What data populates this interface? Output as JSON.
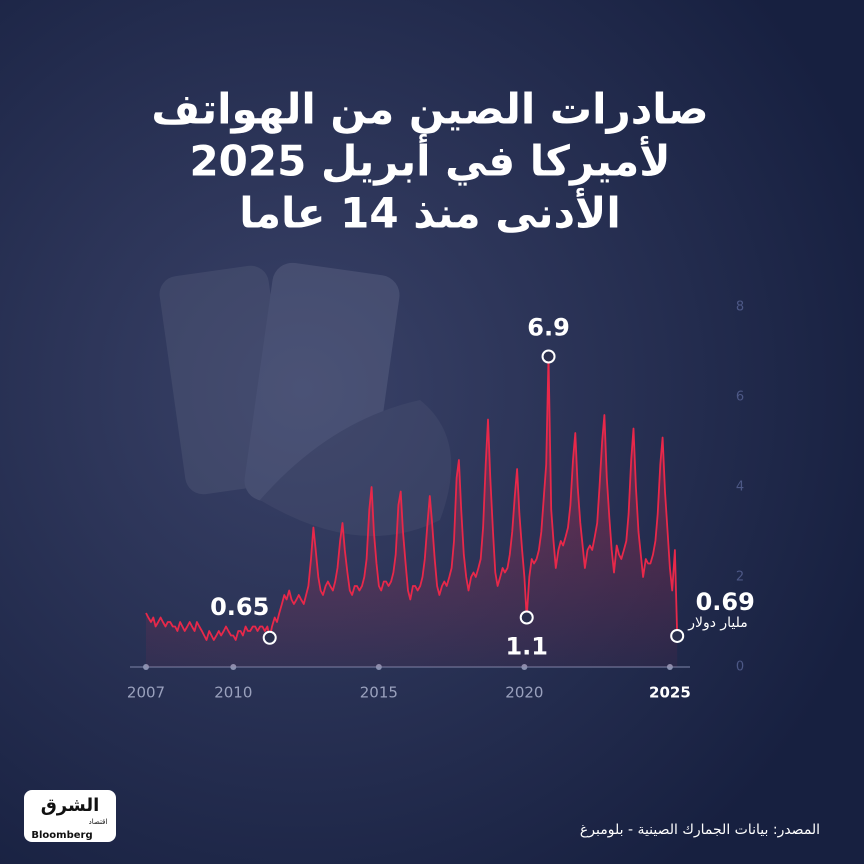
{
  "chart_data": {
    "type": "line",
    "title": [
      "صادرات الصين من الهواتف",
      "لأميركا في أبريل 2025",
      "الأدنى منذ 14 عاما"
    ],
    "y_label": "مليار دولار",
    "source": "المصدر: بيانات الجمارك الصينية - بلومبرغ",
    "color": "#e8284a",
    "x": [
      2007,
      2007.08,
      2007.17,
      2007.25,
      2007.33,
      2007.42,
      2007.5,
      2007.58,
      2007.67,
      2007.75,
      2007.83,
      2007.92,
      2008,
      2008.08,
      2008.17,
      2008.25,
      2008.33,
      2008.42,
      2008.5,
      2008.58,
      2008.67,
      2008.75,
      2008.83,
      2008.92,
      2009,
      2009.08,
      2009.17,
      2009.25,
      2009.33,
      2009.42,
      2009.5,
      2009.58,
      2009.67,
      2009.75,
      2009.83,
      2009.92,
      2010,
      2010.08,
      2010.17,
      2010.25,
      2010.33,
      2010.42,
      2010.5,
      2010.58,
      2010.67,
      2010.75,
      2010.83,
      2010.92,
      2011,
      2011.08,
      2011.17,
      2011.25,
      2011.33,
      2011.42,
      2011.5,
      2011.58,
      2011.67,
      2011.75,
      2011.83,
      2011.92,
      2012,
      2012.08,
      2012.17,
      2012.25,
      2012.33,
      2012.42,
      2012.5,
      2012.58,
      2012.67,
      2012.75,
      2012.83,
      2012.92,
      2013,
      2013.08,
      2013.17,
      2013.25,
      2013.33,
      2013.42,
      2013.5,
      2013.58,
      2013.67,
      2013.75,
      2013.83,
      2013.92,
      2014,
      2014.08,
      2014.17,
      2014.25,
      2014.33,
      2014.42,
      2014.5,
      2014.58,
      2014.67,
      2014.75,
      2014.83,
      2014.92,
      2015,
      2015.08,
      2015.17,
      2015.25,
      2015.33,
      2015.42,
      2015.5,
      2015.58,
      2015.67,
      2015.75,
      2015.83,
      2015.92,
      2016,
      2016.08,
      2016.17,
      2016.25,
      2016.33,
      2016.42,
      2016.5,
      2016.58,
      2016.67,
      2016.75,
      2016.83,
      2016.92,
      2017,
      2017.08,
      2017.17,
      2017.25,
      2017.33,
      2017.42,
      2017.5,
      2017.58,
      2017.67,
      2017.75,
      2017.83,
      2017.92,
      2018,
      2018.08,
      2018.17,
      2018.25,
      2018.33,
      2018.42,
      2018.5,
      2018.58,
      2018.67,
      2018.75,
      2018.83,
      2018.92,
      2019,
      2019.08,
      2019.17,
      2019.25,
      2019.33,
      2019.42,
      2019.5,
      2019.58,
      2019.67,
      2019.75,
      2019.83,
      2019.92,
      2020,
      2020.08,
      2020.17,
      2020.25,
      2020.33,
      2020.42,
      2020.5,
      2020.58,
      2020.67,
      2020.75,
      2020.83,
      2020.92,
      2021,
      2021.08,
      2021.17,
      2021.25,
      2021.33,
      2021.42,
      2021.5,
      2021.58,
      2021.67,
      2021.75,
      2021.83,
      2021.92,
      2022,
      2022.08,
      2022.17,
      2022.25,
      2022.33,
      2022.42,
      2022.5,
      2022.58,
      2022.67,
      2022.75,
      2022.83,
      2022.92,
      2023,
      2023.08,
      2023.17,
      2023.25,
      2023.33,
      2023.42,
      2023.5,
      2023.58,
      2023.67,
      2023.75,
      2023.83,
      2023.92,
      2024,
      2024.08,
      2024.17,
      2024.25,
      2024.33,
      2024.42,
      2024.5,
      2024.58,
      2024.67,
      2024.75,
      2024.83,
      2024.92,
      2025,
      2025.08,
      2025.17,
      2025.25
    ],
    "values": [
      1.2,
      1.1,
      1.0,
      1.1,
      0.9,
      1.0,
      1.1,
      1.0,
      0.9,
      1.0,
      1.0,
      0.9,
      0.9,
      0.8,
      1.0,
      0.9,
      0.8,
      0.9,
      1.0,
      0.9,
      0.8,
      1.0,
      0.9,
      0.8,
      0.7,
      0.6,
      0.8,
      0.7,
      0.6,
      0.7,
      0.8,
      0.7,
      0.8,
      0.9,
      0.8,
      0.7,
      0.7,
      0.6,
      0.8,
      0.8,
      0.7,
      0.9,
      0.8,
      0.8,
      0.9,
      0.9,
      0.8,
      0.9,
      0.9,
      0.8,
      0.9,
      0.65,
      0.9,
      1.1,
      1.0,
      1.2,
      1.4,
      1.6,
      1.5,
      1.7,
      1.5,
      1.4,
      1.5,
      1.6,
      1.5,
      1.4,
      1.6,
      1.8,
      2.4,
      3.1,
      2.6,
      2.0,
      1.7,
      1.6,
      1.8,
      1.9,
      1.8,
      1.7,
      1.9,
      2.2,
      2.8,
      3.2,
      2.6,
      2.1,
      1.7,
      1.6,
      1.8,
      1.8,
      1.7,
      1.8,
      2.0,
      2.4,
      3.5,
      4.0,
      3.0,
      2.3,
      1.8,
      1.7,
      1.9,
      1.9,
      1.8,
      1.9,
      2.1,
      2.5,
      3.6,
      3.9,
      3.0,
      2.3,
      1.7,
      1.5,
      1.8,
      1.8,
      1.7,
      1.8,
      2.0,
      2.4,
      3.2,
      3.8,
      3.2,
      2.4,
      1.8,
      1.6,
      1.8,
      1.9,
      1.8,
      2.0,
      2.2,
      2.8,
      4.2,
      4.6,
      3.5,
      2.5,
      2.0,
      1.7,
      2.0,
      2.1,
      2.0,
      2.2,
      2.4,
      3.1,
      4.5,
      5.5,
      4.2,
      3.0,
      2.1,
      1.8,
      2.0,
      2.2,
      2.1,
      2.2,
      2.5,
      3.0,
      3.8,
      4.4,
      3.4,
      2.6,
      2.0,
      1.1,
      2.0,
      2.4,
      2.3,
      2.4,
      2.6,
      3.0,
      3.8,
      4.5,
      6.9,
      3.5,
      2.8,
      2.2,
      2.6,
      2.8,
      2.7,
      2.9,
      3.1,
      3.6,
      4.6,
      5.2,
      4.0,
      3.2,
      2.7,
      2.2,
      2.6,
      2.7,
      2.6,
      2.9,
      3.2,
      4.0,
      5.0,
      5.6,
      4.2,
      3.3,
      2.6,
      2.1,
      2.7,
      2.5,
      2.4,
      2.6,
      2.8,
      3.4,
      4.6,
      5.3,
      4.0,
      3.0,
      2.5,
      2.0,
      2.4,
      2.3,
      2.3,
      2.5,
      2.8,
      3.4,
      4.5,
      5.1,
      3.9,
      3.0,
      2.2,
      1.7,
      2.6,
      0.69
    ],
    "annotations": [
      {
        "x": 2011.25,
        "y": 0.65
      },
      {
        "x": 2020.08,
        "y": 1.1
      },
      {
        "x": 2020.83,
        "y": 6.9
      },
      {
        "x": 2025.25,
        "y": 0.69
      }
    ],
    "xlim": [
      2006.45,
      2025.69
    ],
    "xticks": [
      2007,
      2010,
      2015,
      2020,
      2025
    ],
    "ylim": [
      0,
      8
    ],
    "yticks": [
      0,
      2,
      4,
      6,
      8
    ]
  },
  "logo": {
    "name": "الشرق",
    "sub": "اقتصاد",
    "brand": "Bloomberg"
  }
}
